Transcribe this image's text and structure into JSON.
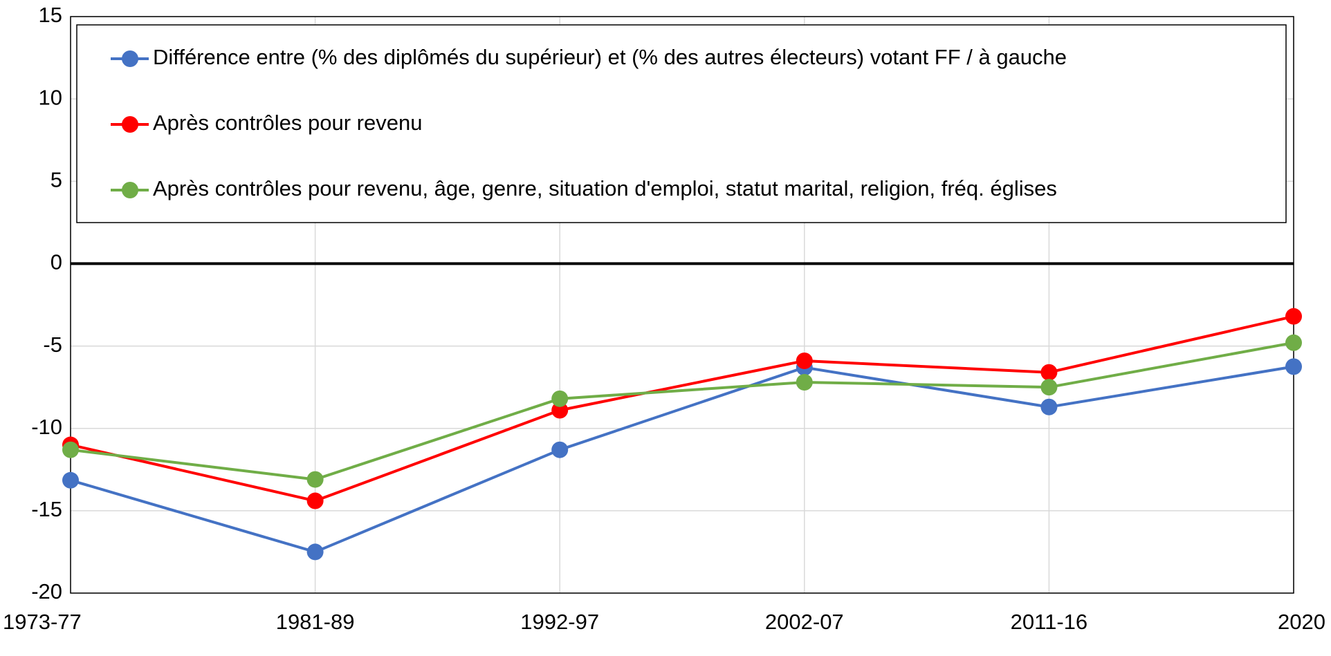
{
  "chart_data": {
    "type": "line",
    "categories": [
      "1973-77",
      "1981-89",
      "1992-97",
      "2002-07",
      "2011-16",
      "2020"
    ],
    "series": [
      {
        "name": "Différence entre (% des diplômés du supérieur) et (% des autres électeurs) votant FF / à gauche",
        "color": "#4472c4",
        "values": [
          -13.15,
          -17.5,
          -11.3,
          -6.3,
          -8.7,
          -6.25
        ]
      },
      {
        "name": "Après contrôles pour revenu",
        "color": "#ff0000",
        "values": [
          -11.0,
          -14.4,
          -8.9,
          -5.9,
          -6.6,
          -3.2
        ]
      },
      {
        "name": "Après contrôles pour revenu, âge, genre, situation d'emploi, statut marital, religion, fréq. églises",
        "color": "#70ad47",
        "values": [
          -11.3,
          -13.1,
          -8.2,
          -7.2,
          -7.5,
          -4.8
        ]
      }
    ],
    "ylim": [
      -20,
      15
    ],
    "yticks": [
      -20,
      -15,
      -10,
      -5,
      0,
      5,
      10,
      15
    ],
    "grid": true,
    "legend": "upper left"
  }
}
